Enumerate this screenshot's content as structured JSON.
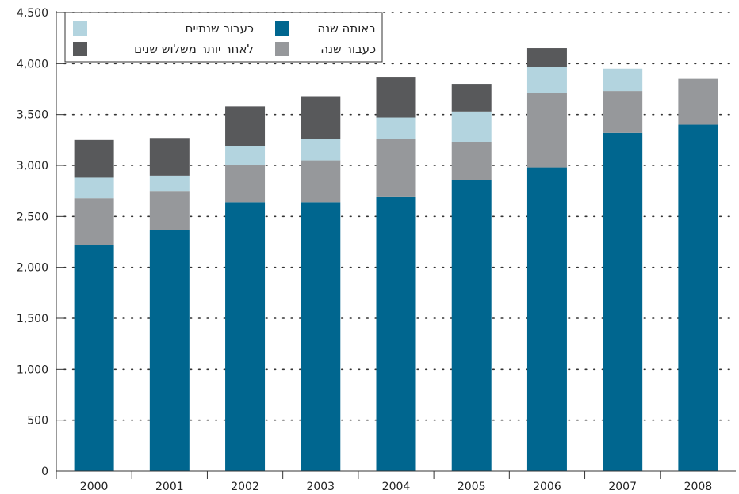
{
  "chart_data": {
    "type": "bar",
    "stacked": true,
    "categories": [
      "2000",
      "2001",
      "2002",
      "2003",
      "2004",
      "2005",
      "2006",
      "2007",
      "2008"
    ],
    "series": [
      {
        "name": "באותה שנה",
        "color": "#00668f",
        "values": [
          2220,
          2370,
          2640,
          2640,
          2690,
          2860,
          2980,
          3320,
          3400
        ]
      },
      {
        "name": "כעבור שנה",
        "color": "#96989b",
        "values": [
          460,
          380,
          360,
          410,
          570,
          370,
          730,
          410,
          450
        ]
      },
      {
        "name": "כעבור שנתיים",
        "color": "#b3d4df",
        "values": [
          200,
          150,
          190,
          210,
          210,
          300,
          260,
          220,
          0
        ]
      },
      {
        "name": "לאחר יותר משלוש שנים",
        "color": "#58595b",
        "values": [
          370,
          370,
          390,
          420,
          400,
          270,
          180,
          0,
          0
        ]
      }
    ],
    "ylim": [
      0,
      4500
    ],
    "yticks": [
      0,
      500,
      1000,
      1500,
      2000,
      2500,
      3000,
      3500,
      4000,
      4500
    ],
    "ytick_labels": [
      "0",
      "500",
      "1,000",
      "1,500",
      "2,000",
      "2,500",
      "3,000",
      "3,500",
      "4,000",
      "4,500"
    ],
    "title": "",
    "xlabel": "",
    "ylabel": "",
    "grid": "dotted-horizontal",
    "legend_position": "top-left"
  }
}
